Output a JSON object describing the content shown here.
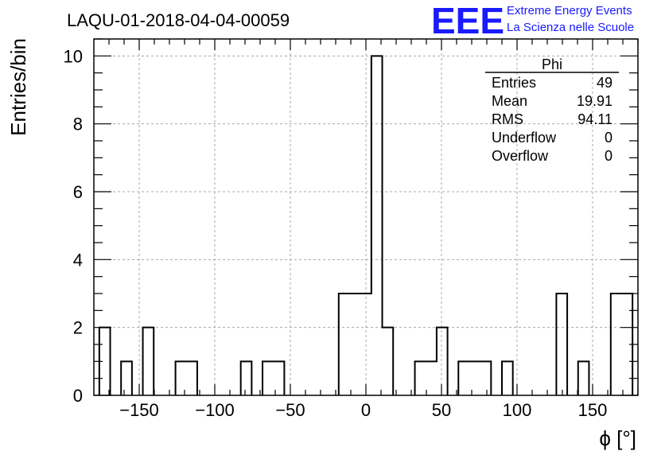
{
  "title": "LAQU-01-2018-04-04-00059",
  "logo": {
    "letters": "EEE",
    "line1": "Extreme Energy Events",
    "line2": "La Scienza nelle Scuole",
    "color": "#1a1aff"
  },
  "stats": {
    "name": "Phi",
    "rows": [
      {
        "label": "Entries",
        "value": "49"
      },
      {
        "label": "Mean",
        "value": "19.91"
      },
      {
        "label": "RMS",
        "value": "94.11"
      },
      {
        "label": "Underflow",
        "value": "0"
      },
      {
        "label": "Overflow",
        "value": "0"
      }
    ]
  },
  "chart_data": {
    "type": "histogram",
    "title": "LAQU-01-2018-04-04-00059",
    "xlabel": "ϕ [°]",
    "ylabel": "Entries/bin",
    "xlim": [
      -180,
      180
    ],
    "ylim": [
      0,
      10.5
    ],
    "bin_width": 7.2,
    "grid": true,
    "xticks": [
      -150,
      -100,
      -50,
      0,
      50,
      100,
      150
    ],
    "xtick_labels": [
      "−150",
      "−100",
      "−50",
      "0",
      "50",
      "100",
      "150"
    ],
    "yticks": [
      0,
      2,
      4,
      6,
      8,
      10
    ],
    "ytick_labels": [
      "0",
      "2",
      "4",
      "6",
      "8",
      "10"
    ],
    "bins": [
      {
        "x": -172.8,
        "y": 2
      },
      {
        "x": -158.4,
        "y": 1
      },
      {
        "x": -144.0,
        "y": 2
      },
      {
        "x": -122.4,
        "y": 1
      },
      {
        "x": -115.2,
        "y": 1
      },
      {
        "x": -79.2,
        "y": 1
      },
      {
        "x": -64.8,
        "y": 1
      },
      {
        "x": -57.6,
        "y": 1
      },
      {
        "x": -14.4,
        "y": 3
      },
      {
        "x": -7.2,
        "y": 3
      },
      {
        "x": 0.0,
        "y": 3
      },
      {
        "x": 7.2,
        "y": 10
      },
      {
        "x": 14.4,
        "y": 2
      },
      {
        "x": 36.0,
        "y": 1
      },
      {
        "x": 43.2,
        "y": 1
      },
      {
        "x": 50.4,
        "y": 2
      },
      {
        "x": 64.8,
        "y": 1
      },
      {
        "x": 72.0,
        "y": 1
      },
      {
        "x": 79.2,
        "y": 1
      },
      {
        "x": 93.6,
        "y": 1
      },
      {
        "x": 129.6,
        "y": 3
      },
      {
        "x": 144.0,
        "y": 1
      },
      {
        "x": 165.6,
        "y": 3
      },
      {
        "x": 172.8,
        "y": 3
      }
    ]
  }
}
